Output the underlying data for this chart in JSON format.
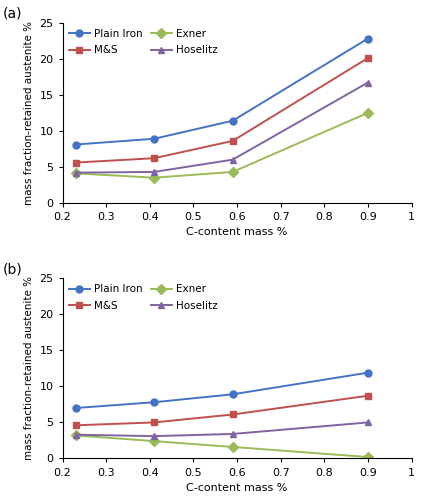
{
  "x": [
    0.23,
    0.41,
    0.59,
    0.9
  ],
  "panel_a": {
    "Plain Iron": [
      8.1,
      8.9,
      11.4,
      22.8
    ],
    "M&S": [
      5.6,
      6.2,
      8.6,
      20.1
    ],
    "Exner": [
      4.1,
      3.5,
      4.3,
      12.5
    ],
    "Hoselitz": [
      4.2,
      4.3,
      6.0,
      16.7
    ]
  },
  "panel_b": {
    "Plain Iron": [
      7.0,
      7.8,
      8.9,
      11.9
    ],
    "M&S": [
      4.6,
      5.0,
      6.1,
      8.7
    ],
    "Exner": [
      3.2,
      2.4,
      1.6,
      0.2
    ],
    "Hoselitz": [
      3.3,
      3.1,
      3.4,
      5.0
    ]
  },
  "colors": {
    "Plain Iron": "#4472C4",
    "M&S": "#C0504D",
    "Exner": "#9BBB59",
    "Hoselitz": "#8064A2"
  },
  "markers": {
    "Plain Iron": "o",
    "M&S": "s",
    "Exner": "D",
    "Hoselitz": "^"
  },
  "ylabel": "mass fraction-retained austenite %",
  "xlabel": "C-content mass %",
  "ylim": [
    0,
    25
  ],
  "xlim": [
    0.2,
    1.0
  ],
  "yticks": [
    0,
    5,
    10,
    15,
    20,
    25
  ],
  "xticks": [
    0.2,
    0.3,
    0.4,
    0.5,
    0.6,
    0.7,
    0.8,
    0.9,
    1.0
  ],
  "label_a": "(a)",
  "label_b": "(b)",
  "series_order": [
    "Plain Iron",
    "M&S",
    "Exner",
    "Hoselitz"
  ],
  "legend_order": [
    "Plain Iron",
    "M&S",
    "Exner",
    "Hoselitz"
  ]
}
